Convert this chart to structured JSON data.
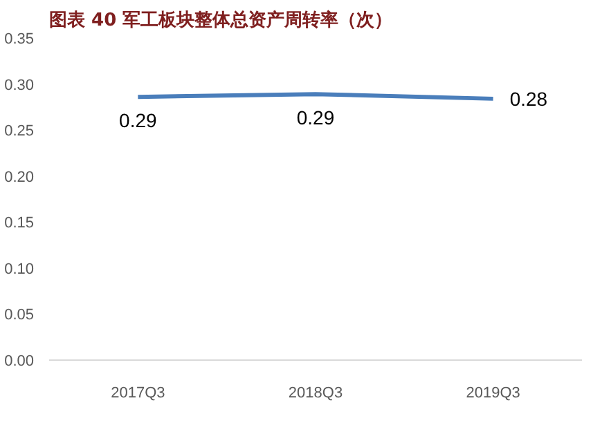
{
  "chart_data": {
    "type": "line",
    "title": "图表 40    军工板块整体总资产周转率（次）",
    "categories": [
      "2017Q3",
      "2018Q3",
      "2019Q3"
    ],
    "series": [
      {
        "color": "#4a7ebb",
        "values": [
          0.286,
          0.289,
          0.284
        ],
        "value_labels": [
          "0.29",
          "0.29",
          "0.28"
        ]
      }
    ],
    "ylim": [
      0,
      0.35
    ],
    "yticks": [
      {
        "value": 0,
        "label": "0.00"
      },
      {
        "value": 0.05,
        "label": "0.05"
      },
      {
        "value": 0.1,
        "label": "0.10"
      },
      {
        "value": 0.15,
        "label": "0.15"
      },
      {
        "value": 0.2,
        "label": "0.20"
      },
      {
        "value": 0.25,
        "label": "0.25"
      },
      {
        "value": 0.3,
        "label": "0.30"
      },
      {
        "value": 0.35,
        "label": "0.35"
      }
    ],
    "grid": false,
    "marker": "none",
    "line_style": "solid"
  }
}
